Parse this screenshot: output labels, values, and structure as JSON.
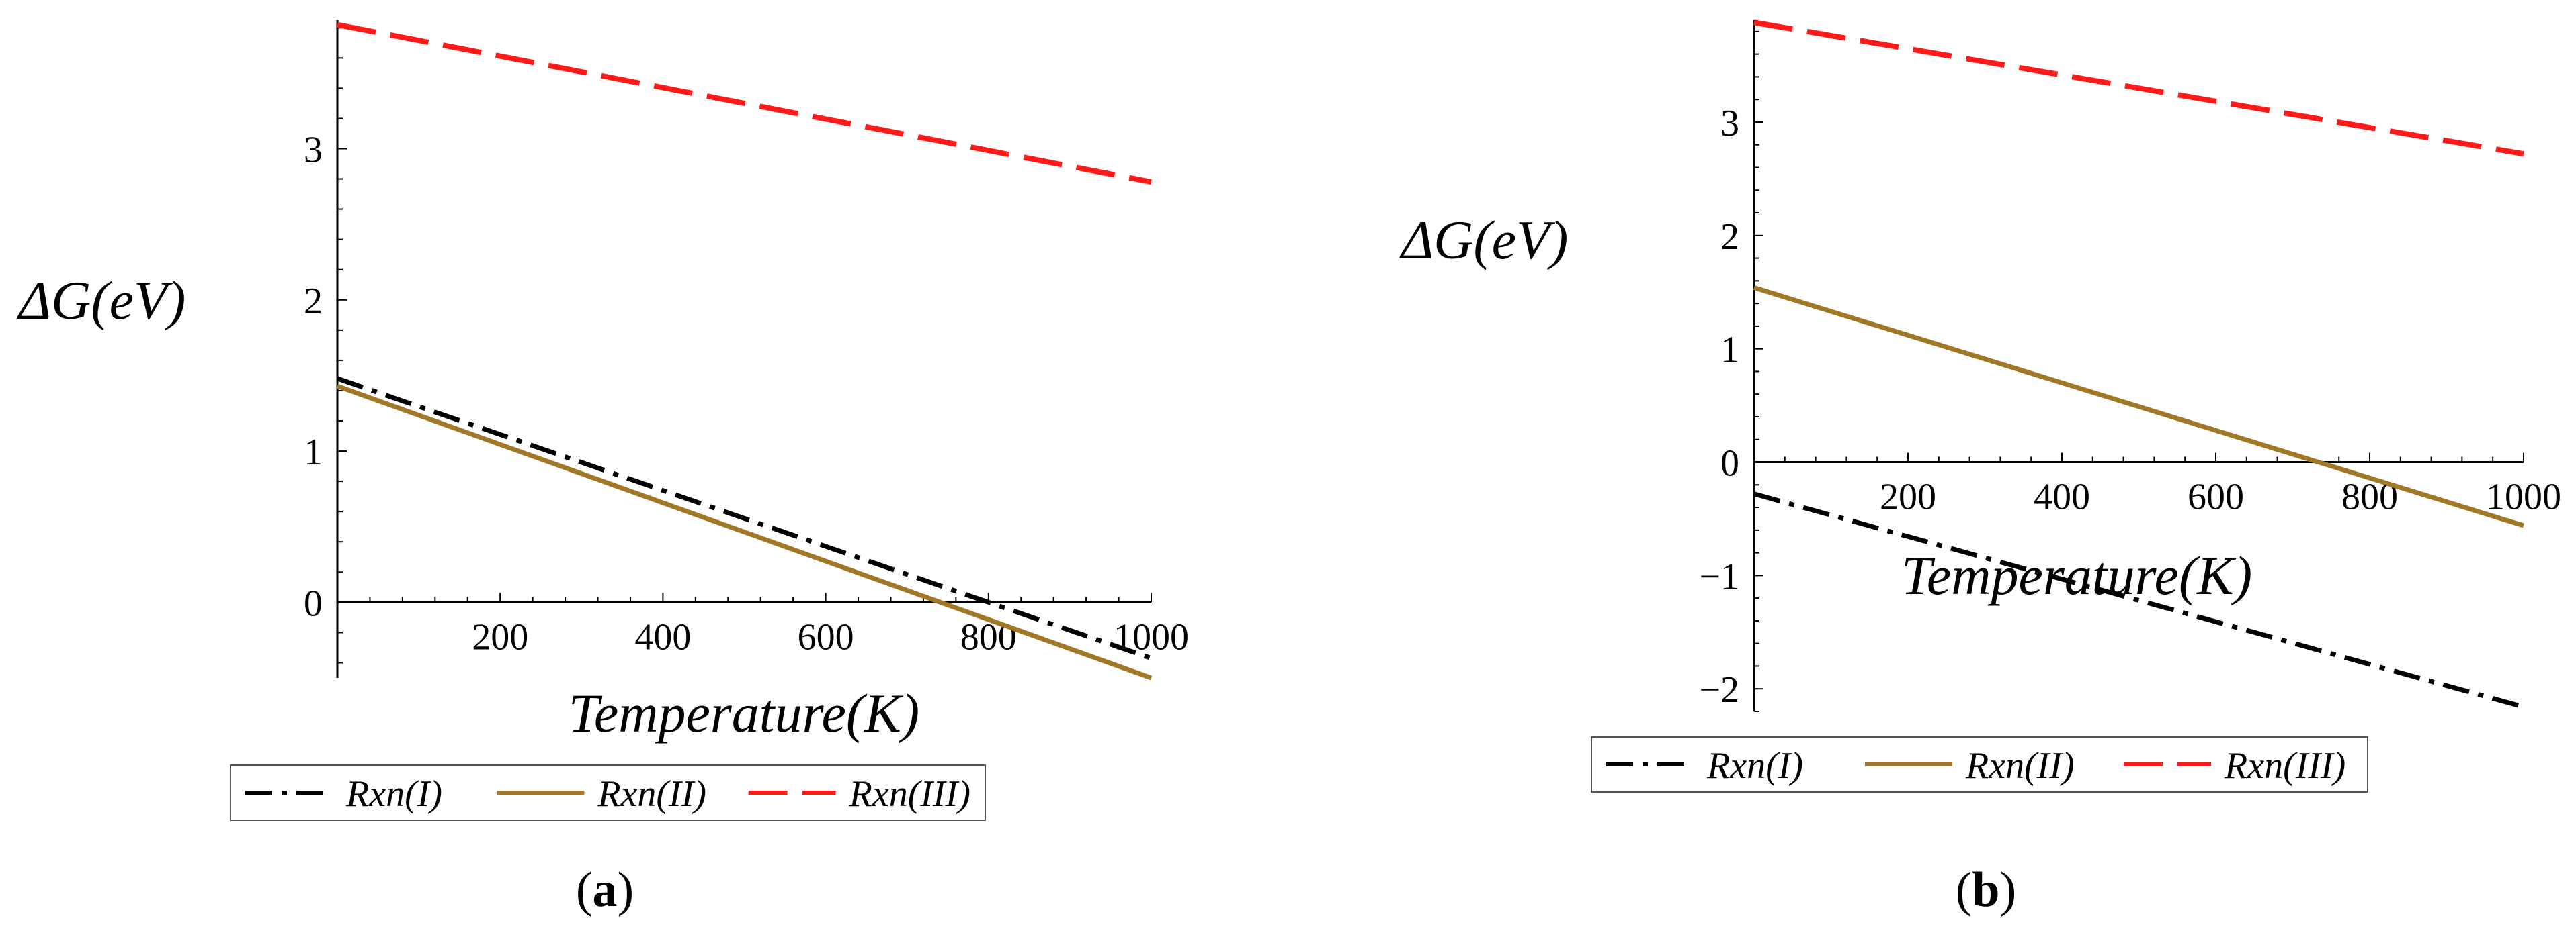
{
  "colors": {
    "rxn1": "#000000",
    "rxn2": "#a07828",
    "rxn3": "#ff1a1a",
    "axis": "#000000",
    "legend_border": "#555555"
  },
  "chart_data": [
    {
      "type": "line",
      "panel_label": "a",
      "xlabel": "Temperature(K)",
      "ylabel": "ΔG(eV)",
      "xlim": [
        0,
        1000
      ],
      "ylim": [
        -0.5,
        3.85
      ],
      "x_ticks": [
        200,
        400,
        600,
        800,
        1000
      ],
      "y_ticks": [
        0,
        1,
        2,
        3
      ],
      "legend_position": "bottom",
      "series": [
        {
          "name": "Rxn(I)",
          "style": "dash-dot",
          "color": "#000000",
          "x": [
            0,
            1000
          ],
          "y": [
            1.48,
            -0.37
          ]
        },
        {
          "name": "Rxn(II)",
          "style": "solid",
          "color": "#a07828",
          "x": [
            0,
            1000
          ],
          "y": [
            1.43,
            -0.5
          ]
        },
        {
          "name": "Rxn(III)",
          "style": "dashed",
          "color": "#ff1a1a",
          "x": [
            0,
            1000
          ],
          "y": [
            3.82,
            2.78
          ]
        }
      ]
    },
    {
      "type": "line",
      "panel_label": "b",
      "xlabel": "Temperature(K)",
      "ylabel": "ΔG(eV)",
      "xlim": [
        0,
        1000
      ],
      "ylim": [
        -2.2,
        3.9
      ],
      "x_ticks": [
        200,
        400,
        600,
        800,
        1000
      ],
      "y_ticks": [
        -2,
        -1,
        0,
        1,
        2,
        3
      ],
      "legend_position": "bottom",
      "series": [
        {
          "name": "Rxn(I)",
          "style": "dash-dot",
          "color": "#000000",
          "x": [
            0,
            1000
          ],
          "y": [
            -0.28,
            -2.16
          ]
        },
        {
          "name": "Rxn(II)",
          "style": "solid",
          "color": "#a07828",
          "x": [
            0,
            1000
          ],
          "y": [
            1.54,
            -0.56
          ]
        },
        {
          "name": "Rxn(III)",
          "style": "dashed",
          "color": "#ff1a1a",
          "x": [
            0,
            1000
          ],
          "y": [
            3.88,
            2.72
          ]
        }
      ]
    }
  ]
}
